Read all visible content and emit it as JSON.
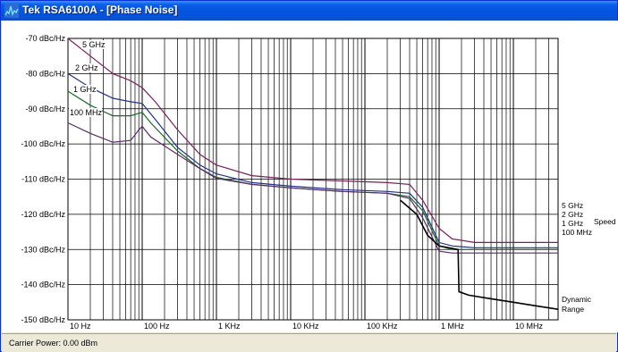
{
  "window": {
    "title": "Tek RSA6100A - [Phase Noise]"
  },
  "status": {
    "carrier_power": "Carrier Power:  0.00 dBm"
  },
  "colors": {
    "5GHz": "#7a1f5a",
    "2GHz": "#1f2f8a",
    "1GHz": "#1a6a2a",
    "100MHz": "#5a2a6a",
    "dynamic": "#000000",
    "grid": "#000000"
  },
  "chart_data": {
    "type": "line",
    "x_scale": "log",
    "xlim": [
      10,
      40000000
    ],
    "ylim": [
      -150,
      -70
    ],
    "y_ticks": [
      {
        "value": -70,
        "label": "-70 dBc/Hz"
      },
      {
        "value": -80,
        "label": "-80 dBc/Hz"
      },
      {
        "value": -90,
        "label": "-90 dBc/Hz"
      },
      {
        "value": -100,
        "label": "-100 dBc/Hz"
      },
      {
        "value": -110,
        "label": "-110 dBc/Hz"
      },
      {
        "value": -120,
        "label": "-120 dBc/Hz"
      },
      {
        "value": -130,
        "label": "-130 dBc/Hz"
      },
      {
        "value": -140,
        "label": "-140 dBc/Hz"
      },
      {
        "value": -150,
        "label": "-150 dBc/Hz"
      }
    ],
    "x_ticks": [
      {
        "value": 10,
        "label": "10 Hz"
      },
      {
        "value": 100,
        "label": "100 Hz"
      },
      {
        "value": 1000,
        "label": "1 KHz"
      },
      {
        "value": 10000,
        "label": "10 KHz"
      },
      {
        "value": 100000,
        "label": "100 KHz"
      },
      {
        "value": 1000000,
        "label": "1 MHz"
      },
      {
        "value": 10000000,
        "label": "10 MHz"
      }
    ],
    "grid": true,
    "series": [
      {
        "name": "5 GHz",
        "color_key": "5GHz",
        "points": [
          [
            10,
            -70
          ],
          [
            20,
            -75
          ],
          [
            40,
            -80
          ],
          [
            70,
            -82
          ],
          [
            100,
            -84
          ],
          [
            150,
            -88
          ],
          [
            300,
            -96
          ],
          [
            600,
            -103
          ],
          [
            1000,
            -106
          ],
          [
            3000,
            -109
          ],
          [
            10000,
            -110
          ],
          [
            50000,
            -110.5
          ],
          [
            200000,
            -111
          ],
          [
            400000,
            -111.5
          ],
          [
            600000,
            -116
          ],
          [
            1000000,
            -124
          ],
          [
            1500000,
            -127
          ],
          [
            3000000,
            -128
          ],
          [
            40000000,
            -128
          ]
        ]
      },
      {
        "name": "2 GHz",
        "color_key": "2GHz",
        "points": [
          [
            10,
            -80
          ],
          [
            20,
            -84
          ],
          [
            40,
            -87
          ],
          [
            70,
            -88
          ],
          [
            100,
            -88.5
          ],
          [
            150,
            -93
          ],
          [
            300,
            -101
          ],
          [
            600,
            -106
          ],
          [
            1000,
            -108.5
          ],
          [
            3000,
            -111
          ],
          [
            10000,
            -112
          ],
          [
            50000,
            -113
          ],
          [
            200000,
            -113.5
          ],
          [
            400000,
            -114
          ],
          [
            600000,
            -118
          ],
          [
            1000000,
            -128
          ],
          [
            1500000,
            -129
          ],
          [
            3000000,
            -129.5
          ],
          [
            40000000,
            -129.5
          ]
        ]
      },
      {
        "name": "1 GHz",
        "color_key": "1GHz",
        "points": [
          [
            10,
            -85
          ],
          [
            20,
            -89
          ],
          [
            40,
            -92
          ],
          [
            70,
            -92
          ],
          [
            100,
            -91
          ],
          [
            130,
            -94
          ],
          [
            300,
            -102
          ],
          [
            600,
            -107
          ],
          [
            1000,
            -109.5
          ],
          [
            3000,
            -111.5
          ],
          [
            10000,
            -112.5
          ],
          [
            50000,
            -113.5
          ],
          [
            200000,
            -114
          ],
          [
            400000,
            -115
          ],
          [
            600000,
            -119
          ],
          [
            1000000,
            -129
          ],
          [
            1500000,
            -130
          ],
          [
            3000000,
            -130
          ],
          [
            40000000,
            -130
          ]
        ]
      },
      {
        "name": "100 MHz",
        "color_key": "100MHz",
        "points": [
          [
            10,
            -94
          ],
          [
            20,
            -97
          ],
          [
            40,
            -99.5
          ],
          [
            70,
            -99
          ],
          [
            90,
            -96
          ],
          [
            100,
            -95
          ],
          [
            130,
            -98
          ],
          [
            300,
            -103
          ],
          [
            600,
            -107
          ],
          [
            1000,
            -109.8
          ],
          [
            3000,
            -111.5
          ],
          [
            10000,
            -112.5
          ],
          [
            50000,
            -113.5
          ],
          [
            200000,
            -114
          ],
          [
            400000,
            -115.5
          ],
          [
            600000,
            -121
          ],
          [
            1000000,
            -130.5
          ],
          [
            1500000,
            -131
          ],
          [
            3000000,
            -131
          ],
          [
            40000000,
            -131
          ]
        ]
      },
      {
        "name": "Dynamic Range",
        "color_key": "dynamic",
        "points": [
          [
            300000,
            -116
          ],
          [
            500000,
            -120
          ],
          [
            700000,
            -126
          ],
          [
            1000000,
            -129
          ],
          [
            1800000,
            -130
          ],
          [
            1850000,
            -142
          ],
          [
            2500000,
            -143
          ],
          [
            5000000,
            -144
          ],
          [
            10000000,
            -145
          ],
          [
            20000000,
            -146
          ],
          [
            40000000,
            -147
          ]
        ]
      }
    ],
    "curve_labels_left": [
      {
        "text": "5 GHz",
        "series": "5 GHz"
      },
      {
        "text": "2 GHz",
        "series": "2 GHz"
      },
      {
        "text": "1 GHz",
        "series": "1 GHz"
      },
      {
        "text": "100 MHz",
        "series": "100 MHz"
      }
    ],
    "legend_right": {
      "speed_items": [
        "5 GHz",
        "2 GHz",
        "1 GHz",
        "100 MHz"
      ],
      "speed_title": "Speed",
      "dynamic_title_line1": "Dynamic",
      "dynamic_title_line2": "Range"
    }
  }
}
